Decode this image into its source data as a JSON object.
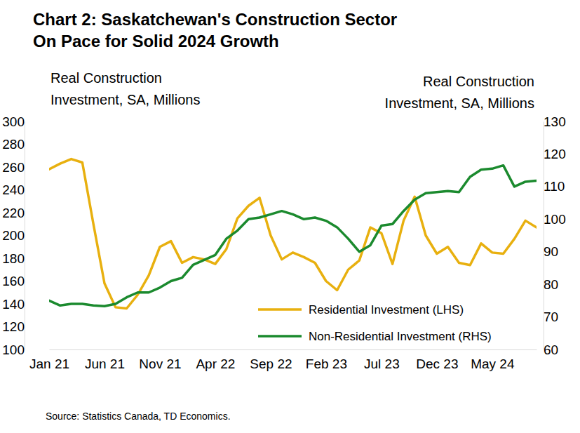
{
  "chart_data": {
    "type": "line",
    "title": [
      "Chart 2: Saskatchewan's Construction Sector",
      "On Pace for Solid 2024 Growth"
    ],
    "ylabel": [
      "Real Construction",
      "Investment, SA, Millions"
    ],
    "y2label": [
      "Real Construction",
      "Investment, SA, Millions"
    ],
    "source": "Source: Statistics Canada, TD Economics.",
    "categories": [
      "Jan 21",
      null,
      null,
      null,
      null,
      "Jun 21",
      null,
      null,
      null,
      null,
      "Nov 21",
      null,
      null,
      null,
      null,
      "Apr 22",
      null,
      null,
      null,
      null,
      "Sep 22",
      null,
      null,
      null,
      null,
      "Feb 23",
      null,
      null,
      null,
      null,
      "Jul 23",
      null,
      null,
      null,
      null,
      "Dec 23",
      null,
      null,
      null,
      null,
      "May 24",
      null,
      null,
      null,
      null
    ],
    "series": [
      {
        "name": "Residential Investment (LHS)",
        "color": "#e8b00f",
        "axis": "y",
        "values": [
          258,
          263,
          267,
          264,
          210,
          158,
          137,
          136,
          148,
          165,
          190,
          195,
          176,
          181,
          179,
          175,
          188,
          215,
          226,
          233,
          200,
          179,
          185,
          181,
          176,
          160,
          152,
          170,
          178,
          207,
          202,
          175,
          213,
          234,
          200,
          184,
          190,
          176,
          174,
          193,
          185,
          184,
          197,
          213,
          207
        ]
      },
      {
        "name": "Non-Residential Investment (RHS)",
        "color": "#1b8a2e",
        "axis": "y2",
        "values": [
          75,
          73.5,
          74,
          74,
          73.5,
          73.3,
          74,
          76,
          77.5,
          77.5,
          79,
          81,
          82,
          86,
          87.5,
          89,
          94,
          96.5,
          100,
          100.5,
          101.5,
          102.5,
          101.5,
          100,
          100.5,
          99.5,
          97.5,
          94,
          90,
          92,
          98,
          98.5,
          102.5,
          106,
          108,
          108.3,
          108.6,
          108.3,
          113,
          115.2,
          115.5,
          116.5,
          110,
          111.5,
          111.8
        ]
      }
    ],
    "ylim": [
      100,
      300
    ],
    "yticks": [
      100,
      120,
      140,
      160,
      180,
      200,
      220,
      240,
      260,
      280,
      300
    ],
    "y2lim": [
      60,
      130
    ],
    "y2ticks": [
      60,
      70,
      80,
      90,
      100,
      110,
      120,
      130
    ],
    "grid": false,
    "legend": "lower right"
  }
}
